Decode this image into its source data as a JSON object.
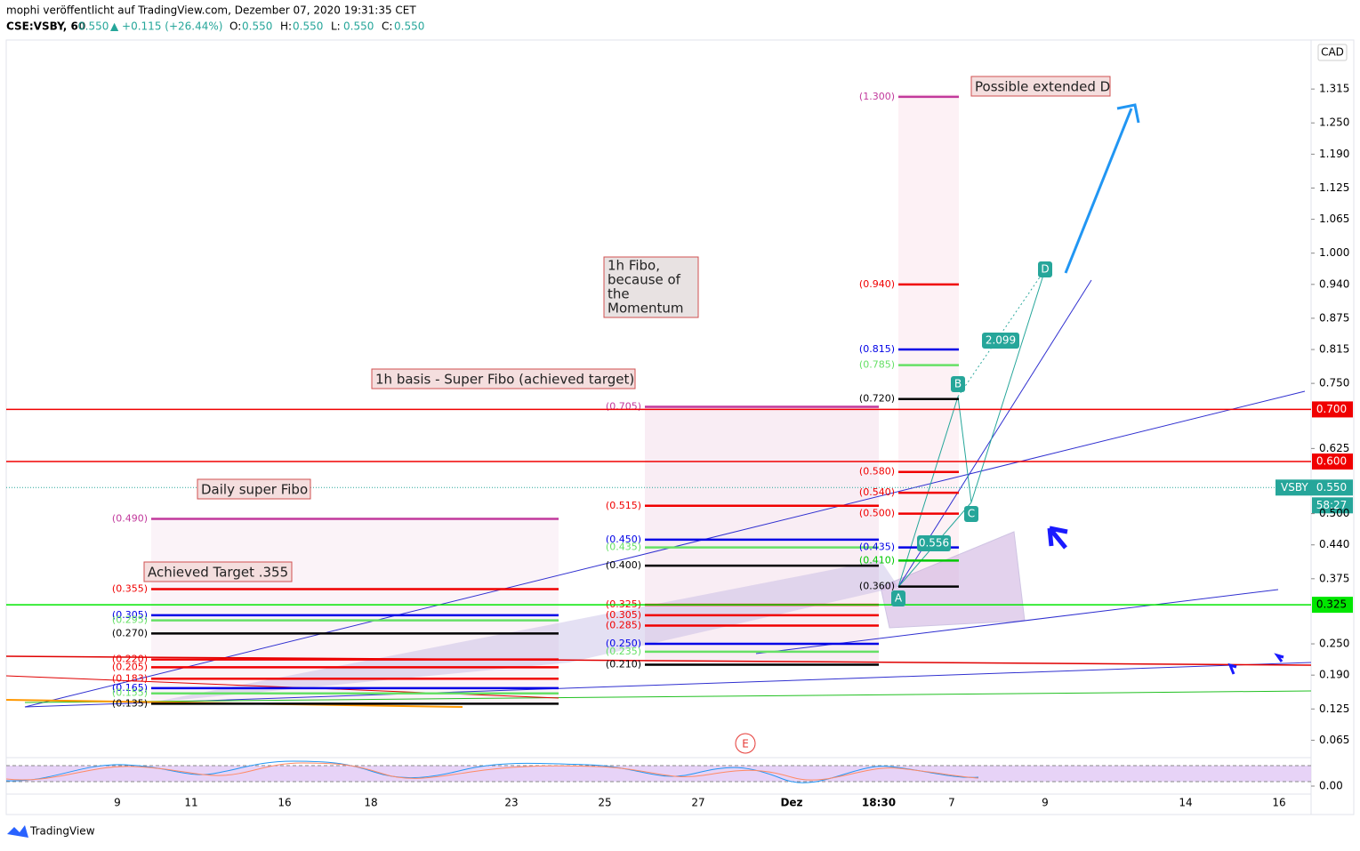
{
  "chart_data": {
    "type": "candlestick",
    "title": "mophi veröffentlicht auf TradingView.com, Dezember 07, 2020 19:31:35 CET",
    "symbol": "CSE:VSBY, 60",
    "last": "0.550",
    "change": "▲ +0.115 (+26.44%)",
    "ohlc": [
      {
        "key": "O:",
        "value": "0.550"
      },
      {
        "key": "H:",
        "value": "0.550"
      },
      {
        "key": "L:",
        "value": "0.550"
      },
      {
        "key": "C:",
        "value": "0.550"
      }
    ],
    "currency": "CAD",
    "countdown": "58:27",
    "brand": "TradingView",
    "ylim": [
      0.035,
      1.404
    ],
    "yticks": [
      1.315,
      {
        "value": 1.25,
        "label": "1.250"
      },
      {
        "value": 1.19,
        "label": "1.190"
      },
      1.125,
      1.065,
      {
        "value": 1,
        "label": "1.000"
      },
      {
        "value": 0.94,
        "label": "0.940"
      },
      0.875,
      0.815,
      {
        "value": 0.75,
        "label": "0.750"
      },
      0.625,
      {
        "value": 0.5,
        "label": "0.500"
      },
      {
        "value": 0.44,
        "label": "0.440"
      },
      0.375,
      {
        "value": 0.25,
        "label": "0.250"
      },
      {
        "value": 0.19,
        "label": "0.190"
      },
      0.125,
      0.065
    ],
    "oscillator_tick": {
      "value": 0,
      "label": "0.00"
    },
    "categories": [
      "9",
      "11",
      "16",
      "18",
      "23",
      "25",
      "27",
      "Dez",
      "18:30",
      "7",
      "9",
      "14",
      "16"
    ],
    "price_lines": [
      {
        "value": 0.7,
        "label": "0.700",
        "color": "#f00000"
      },
      {
        "value": 0.6,
        "label": "0.600",
        "color": "#f00000"
      },
      {
        "value": 0.325,
        "label": "0.325",
        "color": "#00e600"
      }
    ],
    "current_price": {
      "name": "VSBY",
      "value": 0.55,
      "label": "0.550",
      "color": "#26a69a"
    },
    "fib_sets": [
      {
        "name": "Daily super Fibo",
        "levels": [
          {
            "value": 0.49,
            "label": "(0.490)",
            "color": "#c2399c"
          },
          {
            "value": 0.355,
            "label": "(0.355)",
            "color": "#f00000"
          },
          {
            "value": 0.305,
            "label": "(0.305)",
            "color": "#0000e6"
          },
          {
            "value": 0.295,
            "label": "(0.295)",
            "color": "#66e066"
          },
          {
            "value": 0.27,
            "label": "(0.270)",
            "color": "#000000"
          },
          {
            "value": 0.22,
            "label": "(0.220)",
            "color": "#f00000"
          },
          {
            "value": 0.205,
            "label": "(0.205)",
            "color": "#f00000"
          },
          {
            "value": 0.183,
            "label": "(0.183)",
            "color": "#f00000"
          },
          {
            "value": 0.165,
            "label": "(0.165)",
            "color": "#0000e6"
          },
          {
            "value": 0.155,
            "label": "(0.155)",
            "color": "#66e066"
          },
          {
            "value": 0.135,
            "label": "(0.135)",
            "color": "#000000"
          }
        ]
      },
      {
        "name": "1h basis - Super Fibo (achieved target)",
        "levels": [
          {
            "value": 0.705,
            "label": "(0.705)",
            "color": "#c2399c"
          },
          {
            "value": 0.515,
            "label": "(0.515)",
            "color": "#f00000"
          },
          {
            "value": 0.45,
            "label": "(0.450)",
            "color": "#0000e6"
          },
          {
            "value": 0.435,
            "label": "(0.435)",
            "color": "#66e066"
          },
          {
            "value": 0.4,
            "label": "(0.400)",
            "color": "#000000"
          },
          {
            "value": 0.325,
            "label": "(0.325)",
            "color": "#f00000"
          },
          {
            "value": 0.305,
            "label": "(0.305)",
            "color": "#f00000"
          },
          {
            "value": 0.285,
            "label": "(0.285)",
            "color": "#f00000"
          },
          {
            "value": 0.25,
            "label": "(0.250)",
            "color": "#0000e6"
          },
          {
            "value": 0.235,
            "label": "(0.235)",
            "color": "#66e066"
          },
          {
            "value": 0.21,
            "label": "(0.210)",
            "color": "#000000"
          }
        ]
      },
      {
        "name": "1h Fibo",
        "levels": [
          {
            "value": 1.3,
            "label": "(1.300)",
            "color": "#c2399c"
          },
          {
            "value": 0.94,
            "label": "(0.940)",
            "color": "#f00000"
          },
          {
            "value": 0.815,
            "label": "(0.815)",
            "color": "#0000e6"
          },
          {
            "value": 0.785,
            "label": "(0.785)",
            "color": "#66e066"
          },
          {
            "value": 0.72,
            "label": "(0.720)",
            "color": "#000000"
          },
          {
            "value": 0.58,
            "label": "(0.580)",
            "color": "#f00000"
          },
          {
            "value": 0.54,
            "label": "(0.540)",
            "color": "#f00000"
          },
          {
            "value": 0.5,
            "label": "(0.500)",
            "color": "#f00000"
          },
          {
            "value": 0.435,
            "label": "(0.435)",
            "color": "#0000e6"
          },
          {
            "value": 0.41,
            "label": "(0.410)",
            "color": "#00c800"
          },
          {
            "value": 0.36,
            "label": "(0.360)",
            "color": "#000000"
          }
        ]
      }
    ],
    "annotations": {
      "extended": "Possible extended D",
      "momentum": [
        "1h Fibo,",
        "because of",
        "the",
        "Momentum"
      ],
      "achieved": "Achieved Target .355"
    },
    "pattern_points": [
      "A",
      "B",
      "C",
      "D"
    ],
    "pattern_ratios": [
      "0.556",
      "2.099"
    ],
    "event": "E"
  }
}
